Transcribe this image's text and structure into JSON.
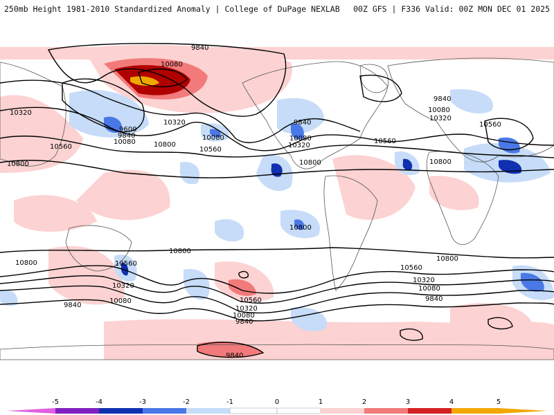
{
  "header": {
    "left": "250mb Height 1981-2010 Standardized Anomaly | College of DuPage NEXLAB",
    "right": "00Z GFS | F336 Valid: 00Z MON DEC 01 2025"
  },
  "colors": {
    "neg5": "#e060e0",
    "neg4": "#8020c0",
    "neg3": "#1030b0",
    "neg2": "#4a78e6",
    "neg1": "#c6dcf8",
    "zero": "#ffffff",
    "pos1": "#fcd2d2",
    "pos2": "#f27a7a",
    "pos3": "#d42020",
    "pos4": "#b00000",
    "pos5": "#f0a800",
    "land": "#555555",
    "contour": "#000000"
  },
  "contour_labels": [
    {
      "id": "c9840-pac",
      "text": "9840"
    },
    {
      "id": "c10080-alaska",
      "text": "10080"
    },
    {
      "id": "c10320-asia",
      "text": "10320"
    },
    {
      "id": "c9600-pac",
      "text": "9600"
    },
    {
      "id": "c9840-pac2",
      "text": "9840"
    },
    {
      "id": "c10080-pac",
      "text": "10080"
    },
    {
      "id": "c10560-pac",
      "text": "10560"
    },
    {
      "id": "c10800-west",
      "text": "10800"
    },
    {
      "id": "c10320-pac",
      "text": "10320"
    },
    {
      "id": "c10800-pac",
      "text": "10800"
    },
    {
      "id": "c10080-npac",
      "text": "10080"
    },
    {
      "id": "c10560-npac",
      "text": "10560"
    },
    {
      "id": "c9840-na",
      "text": "9840"
    },
    {
      "id": "c10080-na",
      "text": "10080"
    },
    {
      "id": "c10320-na",
      "text": "10320"
    },
    {
      "id": "c10800-na",
      "text": "10800"
    },
    {
      "id": "c10560-atl",
      "text": "10560"
    },
    {
      "id": "c10800-atl",
      "text": "10800"
    },
    {
      "id": "c9840-eur",
      "text": "9840"
    },
    {
      "id": "c10080-eur",
      "text": "10080"
    },
    {
      "id": "c10320-eur",
      "text": "10320"
    },
    {
      "id": "c10560-eur",
      "text": "10560"
    },
    {
      "id": "c10800-trop",
      "text": "10800"
    },
    {
      "id": "c10800-sw",
      "text": "10800"
    },
    {
      "id": "c10800-mid",
      "text": "10800"
    },
    {
      "id": "c10800-se",
      "text": "10800"
    },
    {
      "id": "c10560-spac",
      "text": "10560"
    },
    {
      "id": "c10320-spac",
      "text": "10320"
    },
    {
      "id": "c10080-spac",
      "text": "10080"
    },
    {
      "id": "c9840-sw",
      "text": "9840"
    },
    {
      "id": "c10560-sam",
      "text": "10560"
    },
    {
      "id": "c10320-sam",
      "text": "10320"
    },
    {
      "id": "c10080-sam",
      "text": "10080"
    },
    {
      "id": "c9840-sam",
      "text": "9840"
    },
    {
      "id": "c10560-sind",
      "text": "10560"
    },
    {
      "id": "c10320-sind",
      "text": "10320"
    },
    {
      "id": "c10080-sind",
      "text": "10080"
    },
    {
      "id": "c9840-sind",
      "text": "9840"
    },
    {
      "id": "c9840-ant",
      "text": "9840"
    }
  ],
  "colorbar": {
    "ticks": [
      "-5",
      "-4",
      "-3",
      "-2",
      "-1",
      "0",
      "1",
      "2",
      "3",
      "4",
      "5"
    ]
  }
}
